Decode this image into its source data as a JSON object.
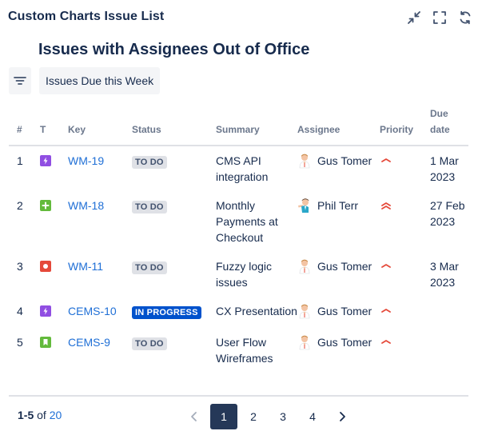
{
  "header": {
    "title": "Custom Charts Issue List",
    "icons": [
      "collapse-icon",
      "fullscreen-icon",
      "refresh-icon"
    ]
  },
  "report": {
    "title": "Issues with Assignees Out of Office"
  },
  "filter": {
    "label": "Issues Due this Week"
  },
  "table": {
    "columns": {
      "num": "#",
      "type": "T",
      "key": "Key",
      "status": "Status",
      "summary": "Summary",
      "assignee": "Assignee",
      "priority": "Priority",
      "due": "Due date"
    },
    "rows": [
      {
        "num": "1",
        "type": "epic",
        "key": "WM-19",
        "status": "TO DO",
        "summary": "CMS API integration",
        "assignee": "Gus Tomer",
        "priority": "medium",
        "due": "1 Mar 2023"
      },
      {
        "num": "2",
        "type": "new-feature",
        "key": "WM-18",
        "status": "TO DO",
        "summary": "Monthly Payments at Checkout",
        "assignee": "Phil Terr",
        "priority": "high",
        "due": "27 Feb 2023"
      },
      {
        "num": "3",
        "type": "bug",
        "key": "WM-11",
        "status": "TO DO",
        "summary": "Fuzzy logic issues",
        "assignee": "Gus Tomer",
        "priority": "medium",
        "due": "3 Mar 2023"
      },
      {
        "num": "4",
        "type": "epic",
        "key": "CEMS-10",
        "status": "IN PROGRESS",
        "summary": "CX Presentation",
        "assignee": "Gus Tomer",
        "priority": "medium",
        "due": ""
      },
      {
        "num": "5",
        "type": "story",
        "key": "CEMS-9",
        "status": "TO DO",
        "summary": "User Flow Wireframes",
        "assignee": "Gus Tomer",
        "priority": "medium",
        "due": ""
      }
    ]
  },
  "footer": {
    "range": "1-5",
    "of": "of",
    "total": "20",
    "pages": [
      "1",
      "2",
      "3",
      "4"
    ],
    "current_page": "1"
  },
  "colors": {
    "accent": "#0052cc",
    "link": "#1f6fd6",
    "todo_bg": "#dfe1e6",
    "in_progress_bg": "#0052cc",
    "priority": "#e5493a",
    "active_page": "#253858"
  }
}
